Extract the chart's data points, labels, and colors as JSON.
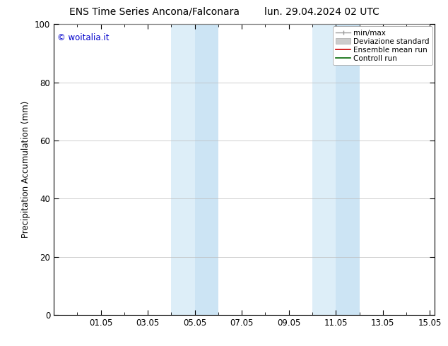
{
  "title_left": "ENS Time Series Ancona/Falconara",
  "title_right": "lun. 29.04.2024 02 UTC",
  "ylabel": "Precipitation Accumulation (mm)",
  "copyright": "© woitalia.it",
  "xlim": [
    29.0,
    45.2
  ],
  "ylim": [
    0,
    100
  ],
  "yticks": [
    0,
    20,
    40,
    60,
    80,
    100
  ],
  "xtick_labels": [
    "01.05",
    "03.05",
    "05.05",
    "07.05",
    "09.05",
    "11.05",
    "13.05",
    "15.05"
  ],
  "xtick_positions": [
    31.0,
    33.0,
    35.0,
    37.0,
    39.0,
    41.0,
    43.0,
    45.0
  ],
  "shaded_bands": [
    {
      "xmin": 34.0,
      "xmax": 35.0,
      "color": "#ddeef8"
    },
    {
      "xmin": 35.0,
      "xmax": 36.0,
      "color": "#cce4f4"
    },
    {
      "xmin": 40.0,
      "xmax": 41.0,
      "color": "#ddeef8"
    },
    {
      "xmin": 41.0,
      "xmax": 42.0,
      "color": "#cce4f4"
    }
  ],
  "background_color": "#ffffff",
  "plot_bg_color": "#ffffff",
  "grid_color": "#bbbbbb",
  "title_fontsize": 10,
  "axis_fontsize": 8.5,
  "tick_fontsize": 8.5,
  "copyright_color": "#0000cc",
  "copyright_fontsize": 8.5,
  "legend_fontsize": 7.5
}
